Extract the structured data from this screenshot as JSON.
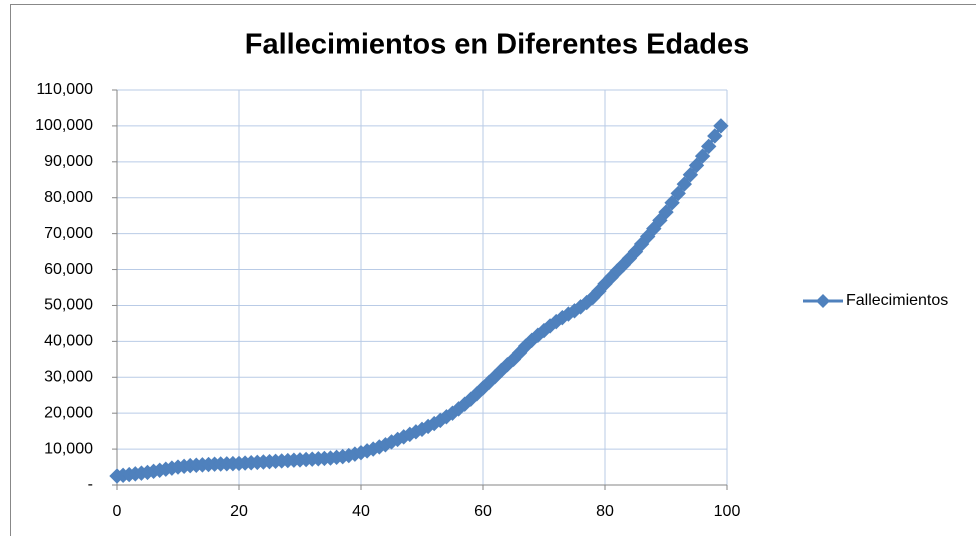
{
  "chart_data": {
    "type": "line",
    "title": "Fallecimientos en Diferentes Edades",
    "x": [
      0,
      1,
      2,
      3,
      4,
      5,
      6,
      7,
      8,
      9,
      10,
      11,
      12,
      13,
      14,
      15,
      16,
      17,
      18,
      19,
      20,
      21,
      22,
      23,
      24,
      25,
      26,
      27,
      28,
      29,
      30,
      31,
      32,
      33,
      34,
      35,
      36,
      37,
      38,
      39,
      40,
      41,
      42,
      43,
      44,
      45,
      46,
      47,
      48,
      49,
      50,
      51,
      52,
      53,
      54,
      55,
      56,
      57,
      58,
      59,
      60,
      61,
      62,
      63,
      64,
      65,
      66,
      67,
      68,
      69,
      70,
      71,
      72,
      73,
      74,
      75,
      76,
      77,
      78,
      79,
      80,
      81,
      82,
      83,
      84,
      85,
      86,
      87,
      88,
      89,
      90,
      91,
      92,
      93,
      94,
      95,
      96,
      97,
      98,
      99
    ],
    "series": [
      {
        "name": "Fallecimientos",
        "color": "#4f81bd",
        "values": [
          2500,
          2700,
          2900,
          3100,
          3300,
          3500,
          3800,
          4100,
          4400,
          4700,
          5000,
          5200,
          5400,
          5500,
          5600,
          5700,
          5800,
          5850,
          5900,
          5950,
          6000,
          6100,
          6200,
          6300,
          6400,
          6500,
          6600,
          6700,
          6800,
          6900,
          7000,
          7100,
          7200,
          7300,
          7400,
          7500,
          7700,
          7900,
          8200,
          8600,
          9000,
          9500,
          10000,
          10600,
          11200,
          12000,
          12700,
          13400,
          14100,
          14800,
          15500,
          16300,
          17100,
          18000,
          19000,
          20000,
          21200,
          22500,
          23900,
          25400,
          27000,
          28600,
          30200,
          31900,
          33500,
          35000,
          36800,
          38700,
          40300,
          41700,
          43000,
          44300,
          45500,
          46600,
          47600,
          48500,
          49600,
          50800,
          52200,
          54000,
          56000,
          57800,
          59600,
          61300,
          63100,
          65000,
          67100,
          69200,
          71400,
          73700,
          76000,
          78600,
          81200,
          83800,
          86400,
          89000,
          91600,
          94300,
          97200,
          100000
        ]
      }
    ],
    "xlim": [
      0,
      100
    ],
    "xticks": [
      0,
      20,
      40,
      60,
      80,
      100
    ],
    "ylim": [
      0,
      110000
    ],
    "yticks": [
      {
        "value": 0,
        "label": "-"
      },
      {
        "value": 10000,
        "label": "10,000"
      },
      {
        "value": 20000,
        "label": "20,000"
      },
      {
        "value": 30000,
        "label": "30,000"
      },
      {
        "value": 40000,
        "label": "40,000"
      },
      {
        "value": 50000,
        "label": "50,000"
      },
      {
        "value": 60000,
        "label": "60,000"
      },
      {
        "value": 70000,
        "label": "70,000"
      },
      {
        "value": 80000,
        "label": "80,000"
      },
      {
        "value": 90000,
        "label": "90,000"
      },
      {
        "value": 100000,
        "label": "100,000"
      },
      {
        "value": 110000,
        "label": "110,000"
      }
    ],
    "grid": true,
    "legend": "right"
  }
}
